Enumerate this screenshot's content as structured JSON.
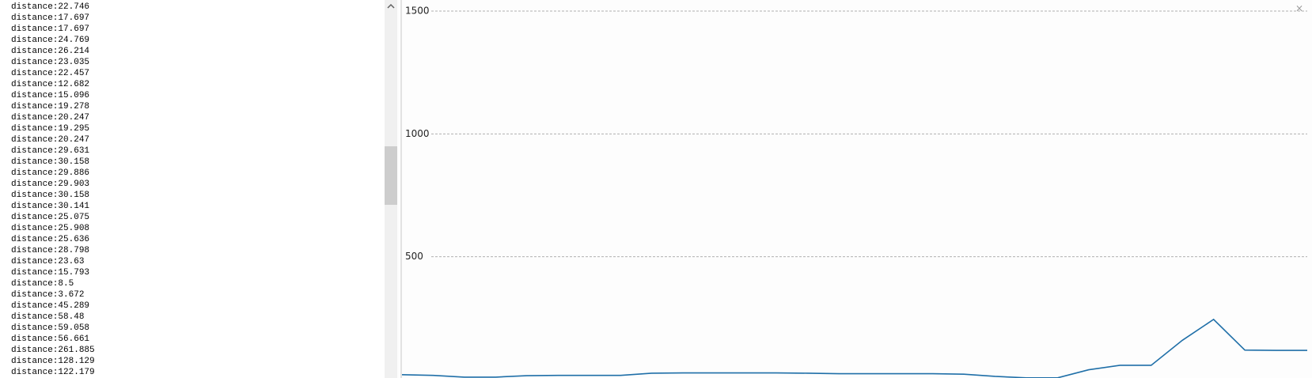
{
  "log": [
    "distance:22.746",
    "distance:17.697",
    "distance:17.697",
    "distance:24.769",
    "distance:26.214",
    "distance:23.035",
    "distance:22.457",
    "distance:12.682",
    "distance:15.096",
    "distance:19.278",
    "distance:20.247",
    "distance:19.295",
    "distance:20.247",
    "distance:29.631",
    "distance:30.158",
    "distance:29.886",
    "distance:29.903",
    "distance:30.158",
    "distance:30.141",
    "distance:25.075",
    "distance:25.908",
    "distance:25.636",
    "distance:28.798",
    "distance:23.63",
    "distance:15.793",
    "distance:8.5",
    "distance:3.672",
    "distance:45.289",
    "distance:58.48",
    "distance:59.058",
    "distance:56.661",
    "distance:261.885",
    "distance:128.129",
    "distance:122.179"
  ],
  "chart_data": {
    "type": "line",
    "ylim": [
      0,
      1500
    ],
    "yticks": [
      500,
      1000,
      1500
    ],
    "grid": true,
    "series": [
      {
        "color": "#1f6fa8",
        "values": [
          20,
          17,
          10,
          10,
          16,
          17,
          17,
          17,
          26,
          27,
          27,
          27,
          27,
          26,
          24,
          24,
          24,
          24,
          22,
          13,
          7,
          7,
          40,
          58,
          58,
          160,
          245,
          120,
          119,
          119
        ]
      }
    ]
  }
}
